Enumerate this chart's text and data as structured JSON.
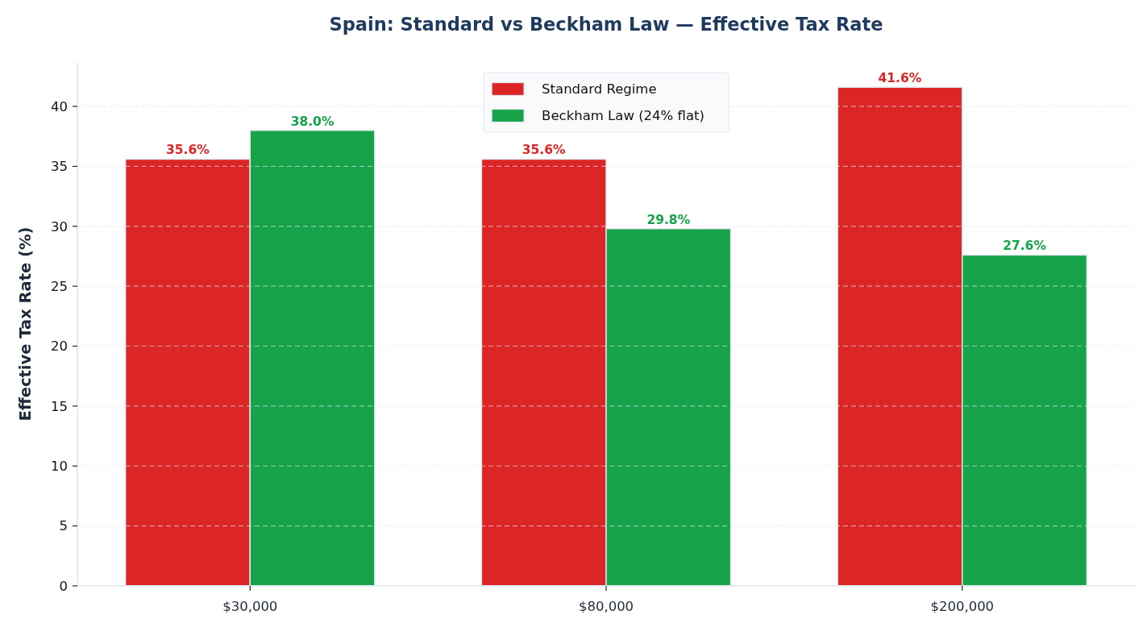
{
  "chart_data": {
    "type": "bar",
    "title": "Spain: Standard vs Beckham Law — Effective Tax Rate",
    "ylabel": "Effective Tax Rate (%)",
    "categories": [
      "$30,000",
      "$80,000",
      "$200,000"
    ],
    "series": [
      {
        "name": "Standard Regime",
        "color": "#dc2626",
        "values": [
          35.6,
          35.6,
          41.6
        ],
        "value_labels": [
          "35.6%",
          "35.6%",
          "41.6%"
        ]
      },
      {
        "name": "Beckham Law (24% flat)",
        "color": "#16a34a",
        "values": [
          38.0,
          29.8,
          27.6
        ],
        "value_labels": [
          "38.0%",
          "29.8%",
          "27.6%"
        ]
      }
    ],
    "ylim": [
      0,
      43.7
    ],
    "yticks": [
      0,
      5,
      10,
      15,
      20,
      25,
      30,
      35,
      40
    ],
    "grid": "y",
    "legend": "top"
  }
}
